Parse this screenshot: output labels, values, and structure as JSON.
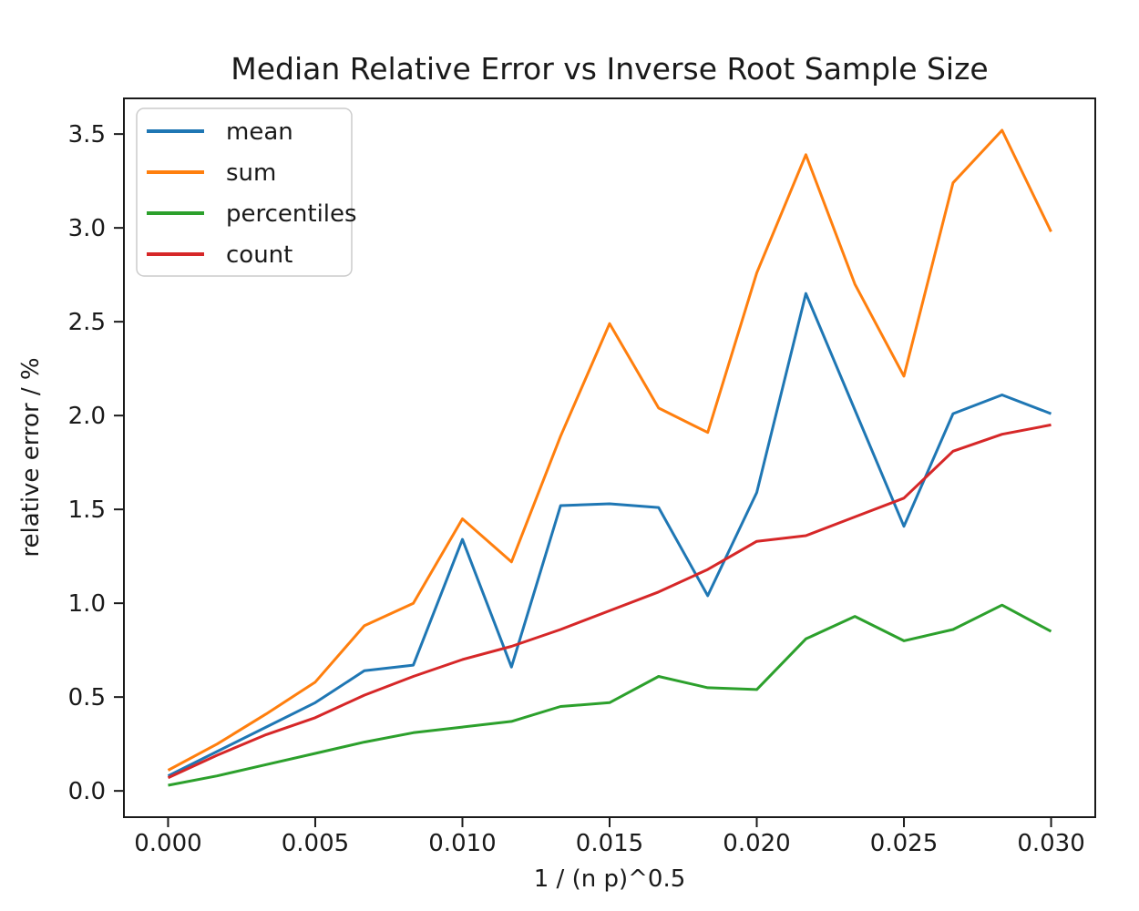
{
  "chart_data": {
    "type": "line",
    "title": "Median Relative Error vs Inverse Root Sample Size",
    "xlabel": "1 / (n p)^0.5",
    "ylabel": "relative error / %",
    "xlim": [
      -0.0015,
      0.0315
    ],
    "ylim": [
      -0.14,
      3.69
    ],
    "xticks": [
      0.0,
      0.005,
      0.01,
      0.015,
      0.02,
      0.025,
      0.03
    ],
    "xtick_labels": [
      "0.000",
      "0.005",
      "0.010",
      "0.015",
      "0.020",
      "0.025",
      "0.030"
    ],
    "yticks": [
      0.0,
      0.5,
      1.0,
      1.5,
      2.0,
      2.5,
      3.0,
      3.5
    ],
    "ytick_labels": [
      "0.0",
      "0.5",
      "1.0",
      "1.5",
      "2.0",
      "2.5",
      "3.0",
      "3.5"
    ],
    "grid": false,
    "legend_position": "upper-left",
    "x": [
      0.0,
      0.001667,
      0.003333,
      0.005,
      0.006667,
      0.008333,
      0.01,
      0.011667,
      0.013333,
      0.015,
      0.016667,
      0.018333,
      0.02,
      0.021667,
      0.023333,
      0.025,
      0.026667,
      0.028333,
      0.03
    ],
    "series": [
      {
        "name": "mean",
        "color": "#1f77b4",
        "values": [
          0.08,
          0.21,
          0.34,
          0.47,
          0.64,
          0.67,
          1.34,
          0.66,
          1.52,
          1.53,
          1.51,
          1.04,
          1.59,
          2.65,
          2.03,
          1.41,
          2.01,
          2.11,
          2.01
        ]
      },
      {
        "name": "sum",
        "color": "#ff7f0e",
        "values": [
          0.11,
          0.25,
          0.41,
          0.58,
          0.88,
          1.0,
          1.45,
          1.22,
          1.89,
          2.49,
          2.04,
          1.91,
          2.76,
          3.39,
          2.7,
          2.21,
          3.24,
          3.52,
          2.98
        ]
      },
      {
        "name": "percentiles",
        "color": "#2ca02c",
        "values": [
          0.03,
          0.08,
          0.14,
          0.2,
          0.26,
          0.31,
          0.34,
          0.37,
          0.45,
          0.47,
          0.61,
          0.55,
          0.54,
          0.81,
          0.93,
          0.8,
          0.86,
          0.99,
          0.85
        ]
      },
      {
        "name": "count",
        "color": "#d62728",
        "values": [
          0.07,
          0.19,
          0.3,
          0.39,
          0.51,
          0.61,
          0.7,
          0.77,
          0.86,
          0.96,
          1.06,
          1.18,
          1.33,
          1.36,
          1.46,
          1.56,
          1.81,
          1.9,
          1.95
        ]
      }
    ]
  }
}
